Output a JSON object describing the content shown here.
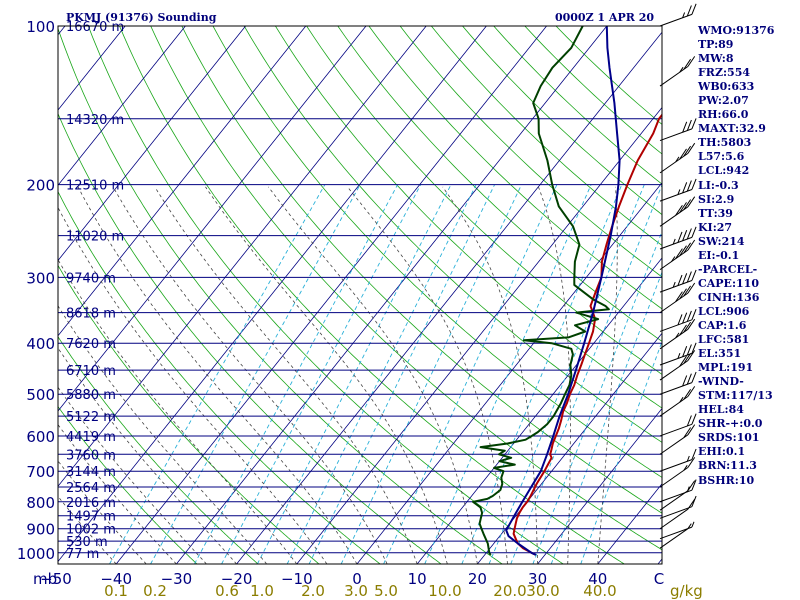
{
  "title_left": "PKMJ (91376) Sounding",
  "title_right": "0000Z  1 APR 20",
  "chart_data": {
    "type": "line",
    "title": "PKMJ (91376) Sounding",
    "subtitle": "0000Z  1 APR 20",
    "xlabel": "",
    "ylabel": "mb",
    "x_unit_label": "mb",
    "mixing_unit_label": "g/kg",
    "xlim": [
      -50,
      50
    ],
    "ylim": [
      1000,
      100
    ],
    "y_scale": "log",
    "pressure_levels": [
      100,
      200,
      300,
      400,
      500,
      600,
      700,
      800,
      900,
      1000
    ],
    "temperature_ticks": [
      -50,
      -40,
      -30,
      -20,
      -10,
      0,
      10,
      20,
      30,
      40
    ],
    "temperature_tick_labels": [
      "−50",
      "−40",
      "−30",
      "−20",
      "−10",
      "0",
      "10",
      "20",
      "30",
      "40"
    ],
    "mixing_ratio_labels": [
      "0.1",
      "0.2",
      "0.6",
      "1.0",
      "2.0",
      "3.0",
      "5.0",
      "10.0",
      "20.0",
      "30.0",
      "40.0"
    ],
    "height_labels": [
      {
        "p": 100,
        "label": "16670 m"
      },
      {
        "p": 150,
        "label": "14320 m"
      },
      {
        "p": 200,
        "label": "12510 m"
      },
      {
        "p": 250,
        "label": "11020 m"
      },
      {
        "p": 300,
        "label": "9740 m"
      },
      {
        "p": 350,
        "label": "8618 m"
      },
      {
        "p": 400,
        "label": "7620 m"
      },
      {
        "p": 450,
        "label": "6710 m"
      },
      {
        "p": 500,
        "label": "5880 m"
      },
      {
        "p": 550,
        "label": "5122 m"
      },
      {
        "p": 600,
        "label": "4419 m"
      },
      {
        "p": 650,
        "label": "3760 m"
      },
      {
        "p": 700,
        "label": "3144 m"
      },
      {
        "p": 750,
        "label": "2564 m"
      },
      {
        "p": 800,
        "label": "2016 m"
      },
      {
        "p": 850,
        "label": "1497 m"
      },
      {
        "p": 900,
        "label": "1002 m"
      },
      {
        "p": 950,
        "label": "530 m"
      },
      {
        "p": 1000,
        "label": "77 m"
      }
    ],
    "series": [
      {
        "name": "Temperature",
        "color": "#b00000",
        "points": [
          [
            1009,
            28.5
          ],
          [
            1000,
            27.5
          ],
          [
            980,
            25.5
          ],
          [
            960,
            24
          ],
          [
            940,
            23
          ],
          [
            920,
            22
          ],
          [
            900,
            21.5
          ],
          [
            880,
            21
          ],
          [
            860,
            20.5
          ],
          [
            840,
            20.2
          ],
          [
            820,
            20
          ],
          [
            800,
            20
          ],
          [
            780,
            19.8
          ],
          [
            760,
            19.5
          ],
          [
            740,
            19.2
          ],
          [
            720,
            19
          ],
          [
            700,
            18.8
          ],
          [
            680,
            18.5
          ],
          [
            660,
            18.2
          ],
          [
            650,
            17.5
          ],
          [
            640,
            17.2
          ],
          [
            620,
            16.5
          ],
          [
            600,
            16
          ],
          [
            580,
            15.5
          ],
          [
            560,
            14.8
          ],
          [
            540,
            14
          ],
          [
            520,
            13.5
          ],
          [
            500,
            12.8
          ],
          [
            480,
            12.3
          ],
          [
            460,
            11.5
          ],
          [
            440,
            10.8
          ],
          [
            420,
            10
          ],
          [
            400,
            9.2
          ],
          [
            380,
            8.3
          ],
          [
            360,
            7
          ],
          [
            350,
            5.8
          ],
          [
            340,
            4.5
          ],
          [
            320,
            3.5
          ],
          [
            300,
            2.5
          ],
          [
            280,
            0.5
          ],
          [
            260,
            -1
          ],
          [
            240,
            -2.5
          ],
          [
            220,
            -4
          ],
          [
            200,
            -5.5
          ],
          [
            180,
            -7
          ],
          [
            160,
            -8
          ],
          [
            150,
            -9
          ],
          [
            140,
            -9
          ],
          [
            130,
            -8.5
          ],
          [
            120,
            -8.5
          ],
          [
            110,
            -8.5
          ],
          [
            100,
            -9
          ]
        ]
      },
      {
        "name": "Dewpoint",
        "color": "#004000",
        "points": [
          [
            1009,
            21
          ],
          [
            1000,
            20.5
          ],
          [
            960,
            19
          ],
          [
            920,
            17
          ],
          [
            900,
            16
          ],
          [
            880,
            15
          ],
          [
            860,
            14.5
          ],
          [
            840,
            14
          ],
          [
            820,
            13
          ],
          [
            810,
            12
          ],
          [
            800,
            11
          ],
          [
            790,
            13
          ],
          [
            780,
            13.5
          ],
          [
            760,
            14
          ],
          [
            740,
            13.5
          ],
          [
            720,
            12.5
          ],
          [
            700,
            12
          ],
          [
            690,
            10
          ],
          [
            680,
            13
          ],
          [
            670,
            10
          ],
          [
            660,
            11.5
          ],
          [
            650,
            9
          ],
          [
            640,
            9.5
          ],
          [
            630,
            5
          ],
          [
            620,
            9
          ],
          [
            610,
            11.5
          ],
          [
            600,
            12
          ],
          [
            590,
            12.5
          ],
          [
            570,
            13
          ],
          [
            550,
            13
          ],
          [
            520,
            12.5
          ],
          [
            500,
            12
          ],
          [
            480,
            11.5
          ],
          [
            460,
            10.5
          ],
          [
            440,
            9
          ],
          [
            420,
            8
          ],
          [
            410,
            7
          ],
          [
            400,
            3
          ],
          [
            395,
            -2
          ],
          [
            390,
            5
          ],
          [
            380,
            7
          ],
          [
            370,
            4.5
          ],
          [
            360,
            7.5
          ],
          [
            350,
            3
          ],
          [
            345,
            8
          ],
          [
            340,
            7
          ],
          [
            330,
            4
          ],
          [
            310,
            -1
          ],
          [
            300,
            -2
          ],
          [
            280,
            -4
          ],
          [
            260,
            -5.5
          ],
          [
            240,
            -9
          ],
          [
            220,
            -14
          ],
          [
            200,
            -18
          ],
          [
            180,
            -22
          ],
          [
            160,
            -27
          ],
          [
            150,
            -29
          ],
          [
            140,
            -32
          ],
          [
            130,
            -33
          ],
          [
            120,
            -33.5
          ],
          [
            110,
            -33
          ],
          [
            100,
            -34
          ]
        ]
      },
      {
        "name": "Parcel",
        "color": "#00008b",
        "points": [
          [
            1009,
            28.5
          ],
          [
            1000,
            27.5
          ],
          [
            960,
            24
          ],
          [
            930,
            21.5
          ],
          [
            906,
            20.3
          ],
          [
            850,
            19.7
          ],
          [
            800,
            19.2
          ],
          [
            750,
            18.7
          ],
          [
            700,
            18.2
          ],
          [
            650,
            17
          ],
          [
            600,
            15.6
          ],
          [
            550,
            14
          ],
          [
            500,
            12.5
          ],
          [
            450,
            10.6
          ],
          [
            400,
            8.4
          ],
          [
            350,
            5.8
          ],
          [
            300,
            2.5
          ],
          [
            250,
            -1.5
          ],
          [
            220,
            -4.5
          ],
          [
            200,
            -7
          ],
          [
            180,
            -10
          ],
          [
            160,
            -14
          ],
          [
            140,
            -18.5
          ],
          [
            120,
            -24
          ],
          [
            110,
            -27
          ],
          [
            100,
            -30
          ]
        ]
      }
    ],
    "wind_barbs": [
      {
        "p": 100,
        "speed": 25
      },
      {
        "p": 130,
        "speed": 25
      },
      {
        "p": 165,
        "speed": 30
      },
      {
        "p": 190,
        "speed": 35
      },
      {
        "p": 215,
        "speed": 35
      },
      {
        "p": 240,
        "speed": 40
      },
      {
        "p": 265,
        "speed": 45
      },
      {
        "p": 290,
        "speed": 45
      },
      {
        "p": 320,
        "speed": 45
      },
      {
        "p": 350,
        "speed": 40
      },
      {
        "p": 380,
        "speed": 40
      },
      {
        "p": 410,
        "speed": 35
      },
      {
        "p": 440,
        "speed": 35
      },
      {
        "p": 470,
        "speed": 30
      },
      {
        "p": 500,
        "speed": 30
      },
      {
        "p": 550,
        "speed": 25
      },
      {
        "p": 600,
        "speed": 20
      },
      {
        "p": 650,
        "speed": 20
      },
      {
        "p": 700,
        "speed": 15
      },
      {
        "p": 750,
        "speed": 15
      },
      {
        "p": 800,
        "speed": 15
      },
      {
        "p": 830,
        "speed": 10
      },
      {
        "p": 860,
        "speed": 10
      },
      {
        "p": 900,
        "speed": 10
      },
      {
        "p": 940,
        "speed": 5
      },
      {
        "p": 980,
        "speed": 5
      }
    ]
  },
  "stats": [
    "WMO:91376",
    "TP:89",
    "MW:8",
    "FRZ:554",
    "WB0:633",
    "PW:2.07",
    "RH:66.0",
    "MAXT:32.9",
    "TH:5803",
    "L57:5.6",
    "LCL:942",
    "LI:-0.3",
    "SI:2.9",
    "TT:39",
    "KI:27",
    "SW:214",
    "EI:-0.1",
    "-PARCEL-",
    "CAPE:110",
    "CINH:136",
    "LCL:906",
    "CAP:1.6",
    "LFC:581",
    "EL:351",
    "MPL:191",
    "-WIND-",
    "STM:117/13",
    "HEL:84",
    "SHR-+:0.0",
    "SRDS:101",
    "EHI:0.1",
    "BRN:11.3",
    "BSHR:10"
  ]
}
